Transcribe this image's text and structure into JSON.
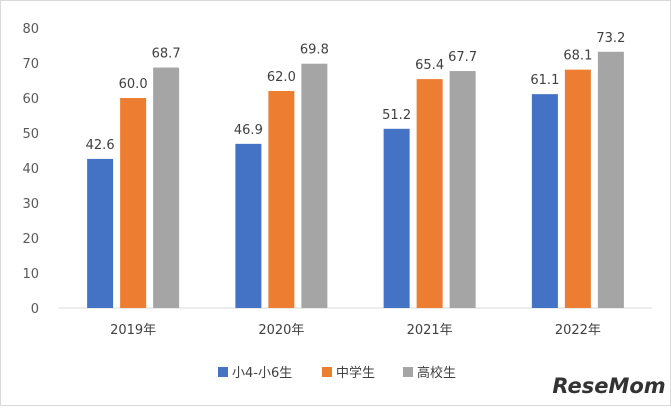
{
  "chart_data": {
    "type": "bar",
    "categories": [
      "2019年",
      "2020年",
      "2021年",
      "2022年"
    ],
    "series": [
      {
        "name": "小4-小6生",
        "color": "#4472c4",
        "values": [
          42.6,
          46.9,
          51.2,
          61.1
        ]
      },
      {
        "name": "中学生",
        "color": "#ed7d31",
        "values": [
          60.0,
          62.0,
          65.4,
          68.1
        ]
      },
      {
        "name": "高校生",
        "color": "#a5a5a5",
        "values": [
          68.7,
          69.8,
          67.7,
          73.2
        ]
      }
    ],
    "ylim": [
      0,
      80
    ],
    "yticks": [
      0,
      10,
      20,
      30,
      40,
      50,
      60,
      70,
      80
    ],
    "data_label_format": "one_decimal",
    "grid": false,
    "legend_position": "bottom"
  },
  "watermark": {
    "text": "ReseMom"
  }
}
